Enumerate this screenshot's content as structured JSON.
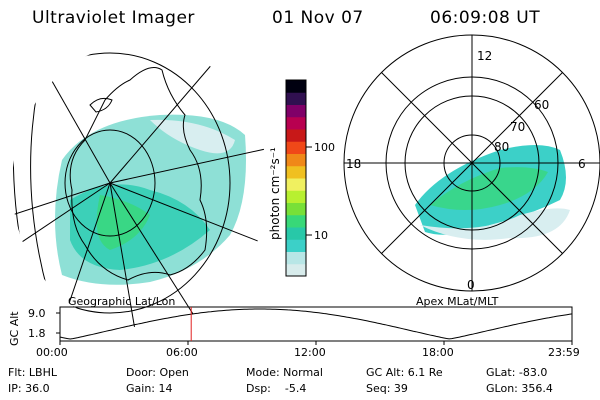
{
  "header": {
    "instrument": "Ultraviolet Imager",
    "date": "01 Nov 07",
    "time": "06:09:08 UT"
  },
  "geo_panel": {
    "label": "Geographic Lat/Lon"
  },
  "polar_panel": {
    "label": "Apex MLat/MLT",
    "mlt_labels": {
      "top": "12",
      "left": "18",
      "right": "6",
      "bottom": "0"
    },
    "lat_labels": [
      "80",
      "70",
      "60"
    ]
  },
  "colorbar": {
    "unit_label": "photon cm⁻²s⁻¹",
    "ticks": [
      "100",
      "10"
    ],
    "scale": "log",
    "colors": [
      "#d8ecec",
      "#b8e6e6",
      "#3cd0c8",
      "#28c8a8",
      "#38d878",
      "#78e038",
      "#b8f030",
      "#f0f060",
      "#f0c020",
      "#f08818",
      "#f04818",
      "#c81818",
      "#b80050",
      "#800068",
      "#301050",
      "#000010"
    ]
  },
  "altitude_plot": {
    "ylabel": "GC Alt",
    "yticks": [
      "9.0",
      "1.8"
    ],
    "xticks": [
      "00:00",
      "06:00",
      "12:00",
      "18:00",
      "23:59"
    ],
    "current_time_marker": "06:09",
    "marker_color": "#e02020"
  },
  "status": {
    "flt": "Flt: LBHL",
    "ip": "IP: 36.0",
    "door": "Door: Open",
    "gain": "Gain: 14",
    "mode": "Mode: Normal",
    "dsp": "Dsp:    -5.4",
    "gcalt": "GC Alt: 6.1 Re",
    "seq": "Seq: 39",
    "glat": "GLat: -83.0",
    "glon": "GLon: 356.4"
  }
}
